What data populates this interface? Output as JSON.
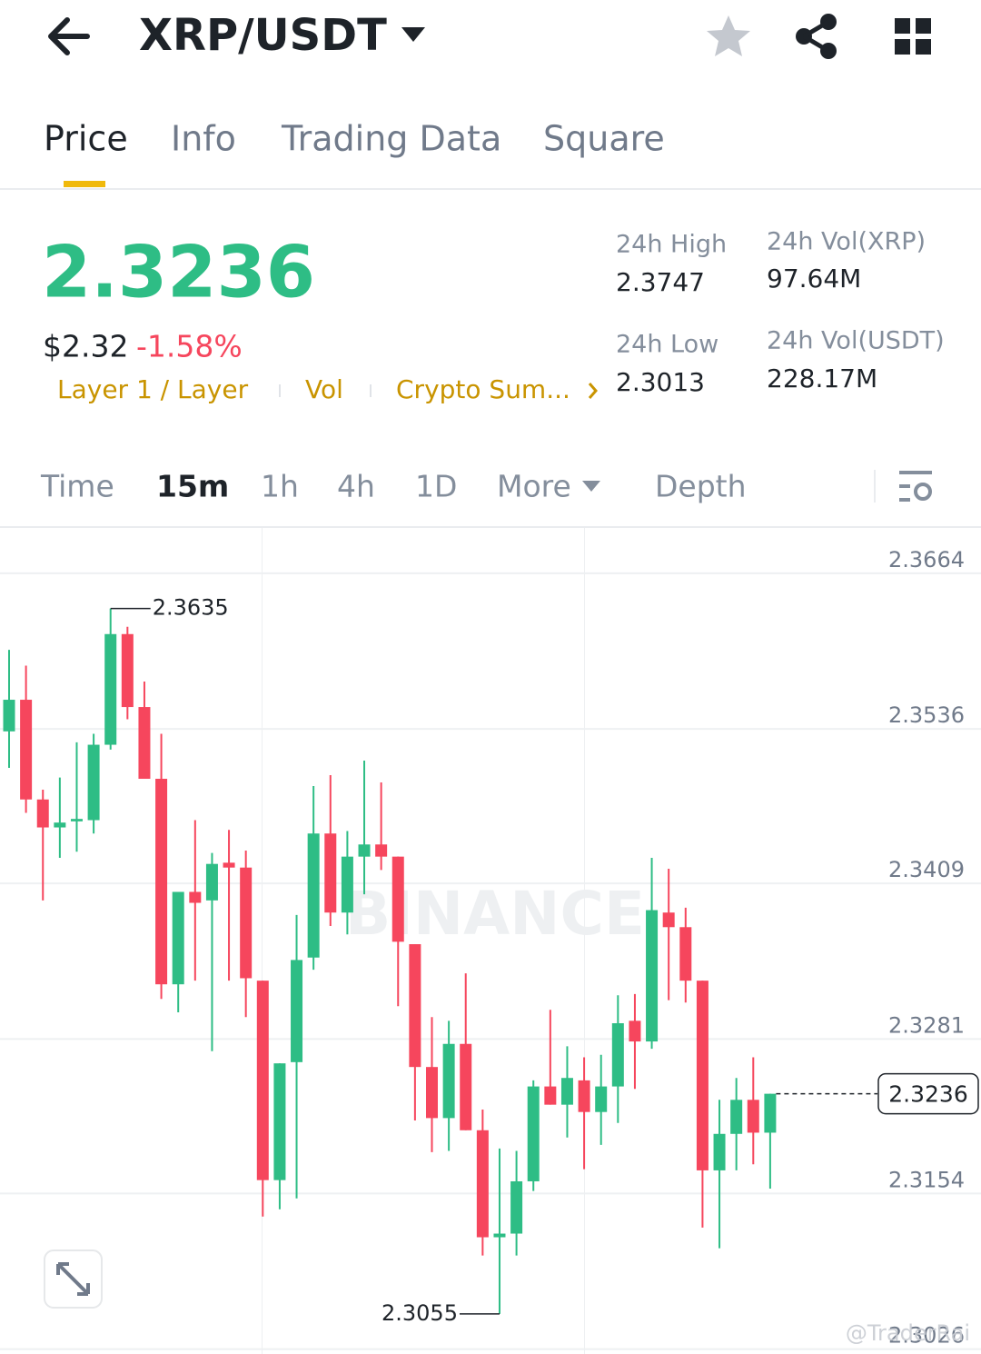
{
  "header": {
    "title": "XRP/USDT"
  },
  "tabs": [
    "Price",
    "Info",
    "Trading Data",
    "Square"
  ],
  "ticker": {
    "price": "2.3236",
    "usd": "$2.32",
    "change": "-1.58%",
    "tags": [
      "Layer 1 / Layer",
      "Vol",
      "Crypto Sum..."
    ]
  },
  "stats": {
    "high_label": "24h High",
    "high": "2.3747",
    "low_label": "24h Low",
    "low": "2.3013",
    "vol_base_label": "24h Vol(XRP)",
    "vol_base": "97.64M",
    "vol_quote_label": "24h Vol(USDT)",
    "vol_quote": "228.17M"
  },
  "intervals": [
    "Time",
    "15m",
    "1h",
    "4h",
    "1D",
    "More",
    "Depth"
  ],
  "credit": "@TraderRai",
  "chart_data": {
    "type": "candlestick",
    "open": [
      2.3534,
      2.356,
      2.3478,
      2.3455,
      2.346,
      2.3461,
      2.3523,
      2.3614,
      2.3554,
      2.3495,
      2.3326,
      2.3402,
      2.3395,
      2.3426,
      2.3422,
      2.3329,
      2.3165,
      2.3262,
      2.3348,
      2.345,
      2.3385,
      2.3431,
      2.3441,
      2.3431,
      2.3359,
      2.3258,
      2.3216,
      2.3277,
      2.3206,
      2.3118,
      2.3121,
      2.3164,
      2.3242,
      2.3227,
      2.3247,
      2.3221,
      2.3242,
      2.3296,
      2.3279,
      2.3385,
      2.3373,
      2.3329,
      2.3173,
      2.3203,
      2.3231,
      2.3204
    ],
    "high": [
      2.3601,
      2.3588,
      2.3486,
      2.3496,
      2.3525,
      2.3532,
      2.3635,
      2.362,
      2.3575,
      2.3532,
      2.3402,
      2.3461,
      2.3434,
      2.3453,
      2.3436,
      2.3329,
      2.3261,
      2.3383,
      2.3489,
      2.3498,
      2.3452,
      2.351,
      2.3492,
      2.3431,
      2.3359,
      2.3299,
      2.3296,
      2.3335,
      2.3223,
      2.3191,
      2.3189,
      2.3247,
      2.3305,
      2.3275,
      2.3266,
      2.3268,
      2.3317,
      2.3318,
      2.343,
      2.3421,
      2.3389,
      2.3329,
      2.3231,
      2.3249,
      2.3266,
      2.3236
    ],
    "low": [
      2.3504,
      2.3467,
      2.3395,
      2.343,
      2.3435,
      2.345,
      2.3519,
      2.3544,
      2.3495,
      2.3314,
      2.3303,
      2.3329,
      2.3271,
      2.3329,
      2.3299,
      2.3135,
      2.3141,
      2.315,
      2.3338,
      2.3374,
      2.3367,
      2.34,
      2.342,
      2.3308,
      2.3214,
      2.3188,
      2.3189,
      2.3206,
      2.3103,
      2.3055,
      2.3103,
      2.3156,
      2.3227,
      2.32,
      2.3174,
      2.3194,
      2.3212,
      2.324,
      2.3273,
      2.3313,
      2.3311,
      2.3126,
      2.3109,
      2.3173,
      2.3178,
      2.3158
    ],
    "close": [
      2.356,
      2.3478,
      2.3455,
      2.3459,
      2.3462,
      2.3523,
      2.3614,
      2.3554,
      2.3495,
      2.3326,
      2.3402,
      2.3393,
      2.3425,
      2.3422,
      2.3331,
      2.3165,
      2.3261,
      2.3346,
      2.345,
      2.3385,
      2.3431,
      2.3441,
      2.3431,
      2.3361,
      2.3258,
      2.3216,
      2.3277,
      2.3206,
      2.3118,
      2.3121,
      2.3164,
      2.3242,
      2.3227,
      2.3249,
      2.3221,
      2.3242,
      2.3294,
      2.3279,
      2.3387,
      2.3373,
      2.3329,
      2.3173,
      2.3203,
      2.3231,
      2.3204,
      2.3236
    ],
    "up_color": "#2ebd85",
    "down_color": "#f6465d",
    "ylim": [
      2.3022,
      2.3702
    ],
    "yticks": [
      2.3664,
      2.3536,
      2.3409,
      2.3281,
      2.3154,
      2.3026
    ],
    "grid": true,
    "high_label": 2.3635,
    "low_label": 2.3055,
    "last_price": 2.3236,
    "watermark": "BINANCE"
  }
}
